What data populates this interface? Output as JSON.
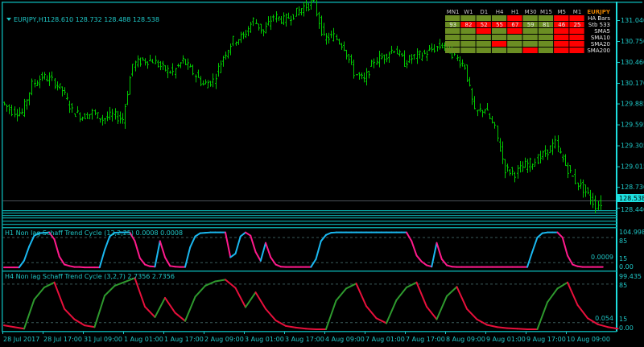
{
  "header": {
    "symbol": "EURJPY,H1",
    "ohlc": "128.610 128.732 128.488 128.538",
    "collapse_icon": "triangle-down-icon"
  },
  "price_axis": {
    "labels": [
      "131.040",
      "130.750",
      "130.460",
      "130.170",
      "129.885",
      "129.595",
      "129.305",
      "129.015",
      "128.730",
      "128.440"
    ],
    "current_price": "128.538"
  },
  "time_axis": {
    "labels": [
      "28 Jul 2017",
      "28 Jul 17:00",
      "31 Jul 09:00",
      "1 Aug 01:00",
      "1 Aug 17:00",
      "2 Aug 09:00",
      "3 Aug 01:00",
      "3 Aug 17:00",
      "4 Aug 09:00",
      "7 Aug 01:00",
      "7 Aug 17:00",
      "8 Aug 09:00",
      "9 Aug 01:00",
      "9 Aug 17:00",
      "10 Aug 09:00"
    ]
  },
  "dashboard": {
    "symbol": "EURJPY",
    "timeframes": [
      "MN1",
      "W1",
      "D1",
      "H4",
      "H1",
      "M30",
      "M15",
      "M5",
      "M1"
    ],
    "rows": [
      {
        "label": "HA Bars",
        "cells": [
          "up",
          "up",
          "up",
          "up",
          "down",
          "up",
          "up",
          "down",
          "down"
        ],
        "values": [
          "",
          "",
          "",
          "",
          "",
          "",
          "",
          "",
          ""
        ]
      },
      {
        "label": "Stb 533",
        "cells": [
          "up",
          "down",
          "down",
          "down",
          "down",
          "up",
          "up",
          "down",
          "down"
        ],
        "values": [
          "93",
          "82",
          "52",
          "55",
          "67",
          "59",
          "81",
          "46",
          "25"
        ]
      },
      {
        "label": "SMA5",
        "cells": [
          "up",
          "up",
          "down",
          "up",
          "down",
          "up",
          "up",
          "down",
          "down"
        ],
        "values": [
          "",
          "",
          "",
          "",
          "",
          "",
          "",
          "",
          ""
        ]
      },
      {
        "label": "SMA10",
        "cells": [
          "up",
          "up",
          "up",
          "up",
          "up",
          "up",
          "up",
          "down",
          "down"
        ],
        "values": [
          "",
          "",
          "",
          "",
          "",
          "",
          "",
          "",
          ""
        ]
      },
      {
        "label": "SMA20",
        "cells": [
          "up",
          "up",
          "up",
          "down",
          "up",
          "up",
          "up",
          "down",
          "down"
        ],
        "values": [
          "",
          "",
          "",
          "",
          "",
          "",
          "",
          "",
          ""
        ]
      },
      {
        "label": "SMA200",
        "cells": [
          "up",
          "up",
          "up",
          "up",
          "up",
          "down",
          "up",
          "down",
          "down"
        ],
        "values": [
          "",
          "",
          "",
          "",
          "",
          "",
          "",
          "",
          ""
        ]
      }
    ],
    "colors": {
      "up": "#6b8e23",
      "down": "#ff0000",
      "symbol": "#e08000"
    }
  },
  "indicator1": {
    "title": "H1 Non lag Schaff Trend Cycle  (12,2,25) 0.0008 0.0008",
    "axis_labels": {
      "max": "104.9984",
      "upper": "85",
      "lower": "15",
      "zero": "0.00",
      "current": "0.0009"
    },
    "colors": {
      "rising": "#1ab8f0",
      "falling": "#ff1a8c"
    }
  },
  "indicator2": {
    "title": "H4 Non lag Schaff Trend Cycle  (3,2,7) 2.7356 2.7356",
    "axis_labels": {
      "max": "99.435",
      "upper": "85",
      "lower": "15",
      "zero": "0.00",
      "current": "0.054"
    },
    "colors": {
      "rising": "#2e9a2e",
      "falling": "#e8103c"
    }
  },
  "chart_data": [
    {
      "type": "line",
      "title": "EURJPY,H1",
      "series": [
        {
          "name": "EURJPY",
          "values": [
            129.902,
            129.78,
            129.757,
            130.148,
            130.259,
            130.204,
            130.07,
            129.78,
            129.702,
            129.757,
            129.668,
            129.724,
            129.668,
            130.427,
            130.482,
            130.482,
            130.371,
            130.315,
            130.482,
            130.315,
            130.148,
            130.204,
            130.538,
            130.761,
            130.817,
            131.04,
            130.873,
            131.096,
            131.04,
            131.118,
            131.23,
            131.263,
            130.783,
            130.817,
            130.672,
            130.315,
            130.204,
            130.482,
            130.538,
            130.65,
            130.449,
            130.538,
            130.572,
            130.65,
            130.705,
            130.538,
            130.404,
            129.757,
            129.813,
            129.534,
            128.977,
            128.921,
            129.032,
            129.088,
            129.2,
            129.334,
            129.032,
            128.809,
            128.664,
            128.474,
            128.538
          ]
        }
      ],
      "ylim": [
        128.4,
        131.3
      ],
      "bar_color": "#00c800"
    },
    {
      "type": "line",
      "title": "H1 Non lag Schaff Trend Cycle",
      "levels": [
        15,
        85
      ],
      "ylim": [
        0,
        104.9984
      ],
      "series": [
        {
          "values": [
            2,
            2,
            2,
            2,
            21,
            60,
            90,
            97,
            98,
            99,
            80,
            32,
            10,
            6,
            3,
            3,
            2,
            2,
            2,
            2,
            50,
            88,
            98,
            99,
            99,
            99,
            75,
            28,
            10,
            5,
            4,
            75,
            30,
            6,
            4,
            3,
            3,
            58,
            88,
            97,
            98,
            99,
            99,
            99,
            99,
            30,
            40,
            88,
            99,
            90,
            45,
            20,
            70,
            30,
            10,
            4,
            3,
            3,
            3,
            3,
            3,
            3,
            25,
            75,
            92,
            98,
            99,
            99,
            99,
            99,
            99,
            99,
            99,
            99,
            99,
            99,
            99,
            99,
            99,
            99,
            99,
            75,
            35,
            18,
            8,
            4,
            70,
            25,
            8,
            4,
            3,
            3,
            3,
            3,
            3,
            3,
            3,
            3,
            3,
            3,
            3,
            3,
            3,
            3,
            3,
            45,
            85,
            97,
            99,
            99,
            99,
            85,
            35,
            10,
            5,
            3,
            3,
            3,
            3,
            3
          ]
        }
      ]
    },
    {
      "type": "line",
      "title": "H4 Non lag Schaff Trend Cycle",
      "levels": [
        15,
        85
      ],
      "ylim": [
        0,
        99.435
      ],
      "series": [
        {
          "values": [
            10,
            7,
            4,
            57,
            79,
            88,
            40,
            21,
            10,
            7,
            64,
            82,
            89,
            96,
            44,
            25,
            60,
            33,
            18,
            62,
            82,
            90,
            93,
            78,
            43,
            70,
            40,
            19,
            9,
            6,
            4,
            3,
            3,
            55,
            77,
            86,
            45,
            23,
            14,
            56,
            79,
            88,
            44,
            21,
            63,
            80,
            40,
            21,
            11,
            7,
            5,
            4,
            3,
            3,
            52,
            77,
            88,
            47,
            23,
            12,
            7,
            4
          ]
        }
      ]
    }
  ]
}
